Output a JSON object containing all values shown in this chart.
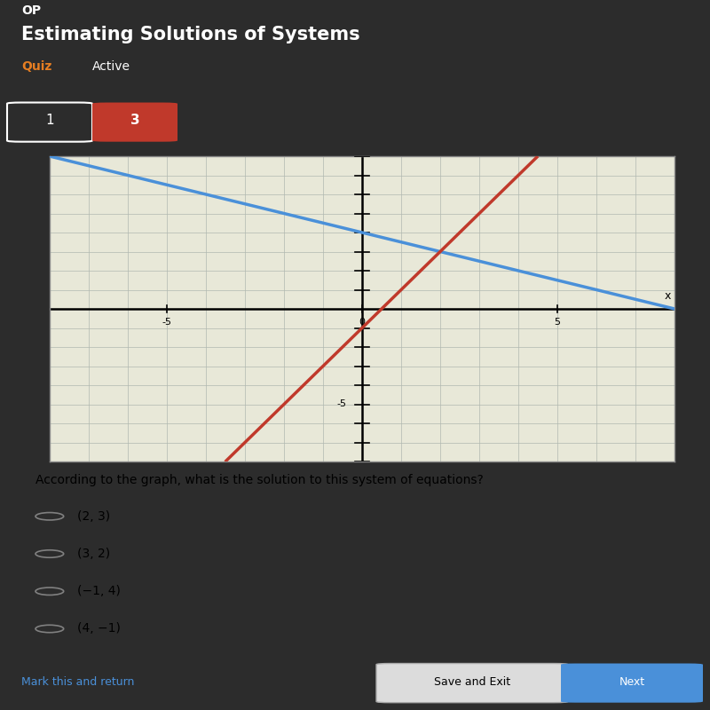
{
  "bg_color": "#2c2c2c",
  "title_text": "Estimating Solutions of Systems",
  "quiz_label": "Quiz",
  "active_label": "Active",
  "btn1_text": "1",
  "btn2_text": "3",
  "btn2_color": "#c0392b",
  "graph_bg": "#e8e8d8",
  "graph_xlim": [
    -8,
    8
  ],
  "graph_ylim": [
    -8,
    8
  ],
  "line1_slope": -0.5,
  "line1_intercept": 4,
  "line1_color": "#4a90d9",
  "line2_slope": 2,
  "line2_intercept": -1,
  "line2_color": "#c0392b",
  "axis_color": "#000000",
  "grid_color": "#b0b8b0",
  "question_text": "According to the graph, what is the solution to this system of equations?",
  "choices": [
    "(2, 3)",
    "(3, 2)",
    "(−1, 4)",
    "(4, −1)"
  ],
  "mark_return_text": "Mark this and return",
  "save_exit_text": "Save and Exit",
  "next_text": "Next",
  "next_btn_color": "#4a90d9",
  "op_text": "OP",
  "tick_labels_x": [
    "-5",
    "0",
    "5"
  ],
  "tick_label_y": "-5",
  "x_label": "x",
  "content_bg": "#cccdc0",
  "header_bg": "#1c1c1c",
  "btns_bg": "#2c2c2c",
  "bottom_bg": "#2c2c2c"
}
